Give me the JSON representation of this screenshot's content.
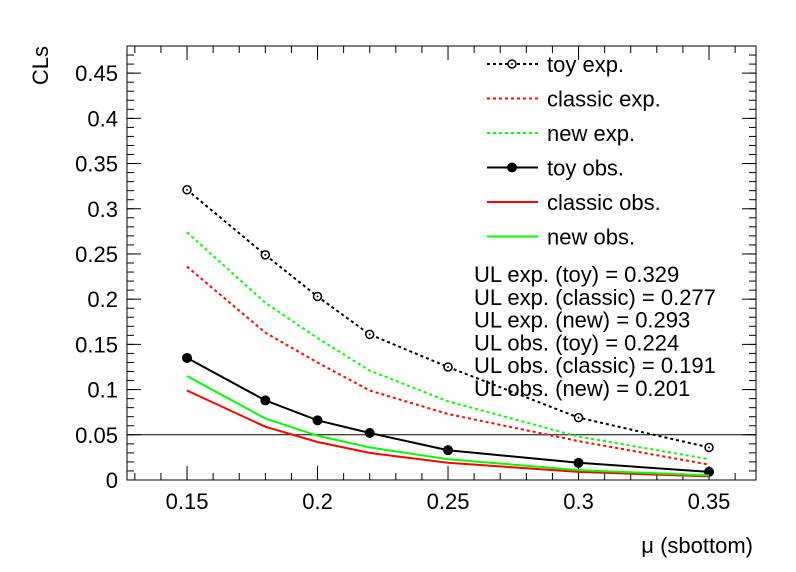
{
  "chart_data": {
    "type": "line",
    "title": "",
    "xlabel": "μ (sbottom)",
    "ylabel": "CLs",
    "xlim": [
      0.127,
      0.368
    ],
    "ylim": [
      0,
      0.48
    ],
    "x_ticks": [
      "0.15",
      "0.2",
      "0.25",
      "0.3",
      "0.35"
    ],
    "y_ticks": [
      "0",
      "0.05",
      "0.1",
      "0.15",
      "0.2",
      "0.25",
      "0.3",
      "0.35",
      "0.4",
      "0.45"
    ],
    "reference_line": {
      "y": 0.05
    },
    "grid": false,
    "legend_position": "top-right",
    "series": [
      {
        "name": "toy exp.",
        "style": "dotted",
        "marker": "open-circle",
        "color": "#000000",
        "x": [
          0.15,
          0.18,
          0.2,
          0.22,
          0.25,
          0.3,
          0.35
        ],
        "y": [
          0.321,
          0.249,
          0.203,
          0.161,
          0.125,
          0.069,
          0.036
        ]
      },
      {
        "name": "classic exp.",
        "style": "dotted",
        "marker": "none",
        "color": "#ff0000",
        "x": [
          0.15,
          0.18,
          0.2,
          0.22,
          0.25,
          0.3,
          0.35
        ],
        "y": [
          0.236,
          0.163,
          0.13,
          0.099,
          0.073,
          0.043,
          0.017
        ]
      },
      {
        "name": "new exp.",
        "style": "dotted",
        "marker": "none",
        "color": "#00ff00",
        "x": [
          0.15,
          0.18,
          0.2,
          0.22,
          0.25,
          0.3,
          0.35
        ],
        "y": [
          0.274,
          0.196,
          0.157,
          0.121,
          0.087,
          0.048,
          0.023
        ]
      },
      {
        "name": "toy obs.",
        "style": "solid",
        "marker": "filled-circle",
        "color": "#000000",
        "x": [
          0.15,
          0.18,
          0.2,
          0.22,
          0.25,
          0.3,
          0.35
        ],
        "y": [
          0.135,
          0.088,
          0.066,
          0.052,
          0.033,
          0.019,
          0.009
        ]
      },
      {
        "name": "classic obs.",
        "style": "solid",
        "marker": "none",
        "color": "#ff0000",
        "x": [
          0.15,
          0.18,
          0.2,
          0.22,
          0.25,
          0.3,
          0.35
        ],
        "y": [
          0.099,
          0.059,
          0.042,
          0.03,
          0.019,
          0.009,
          0.004
        ]
      },
      {
        "name": "new obs.",
        "style": "solid",
        "marker": "none",
        "color": "#00ff00",
        "x": [
          0.15,
          0.18,
          0.2,
          0.22,
          0.25,
          0.3,
          0.35
        ],
        "y": [
          0.115,
          0.068,
          0.049,
          0.036,
          0.023,
          0.011,
          0.005
        ]
      }
    ],
    "annotations": [
      "UL exp. (toy) = 0.329",
      "UL exp. (classic) = 0.277",
      "UL exp. (new) = 0.293",
      "UL obs. (toy) = 0.224",
      "UL obs. (classic) = 0.191",
      "UL obs. (new) = 0.201"
    ]
  }
}
